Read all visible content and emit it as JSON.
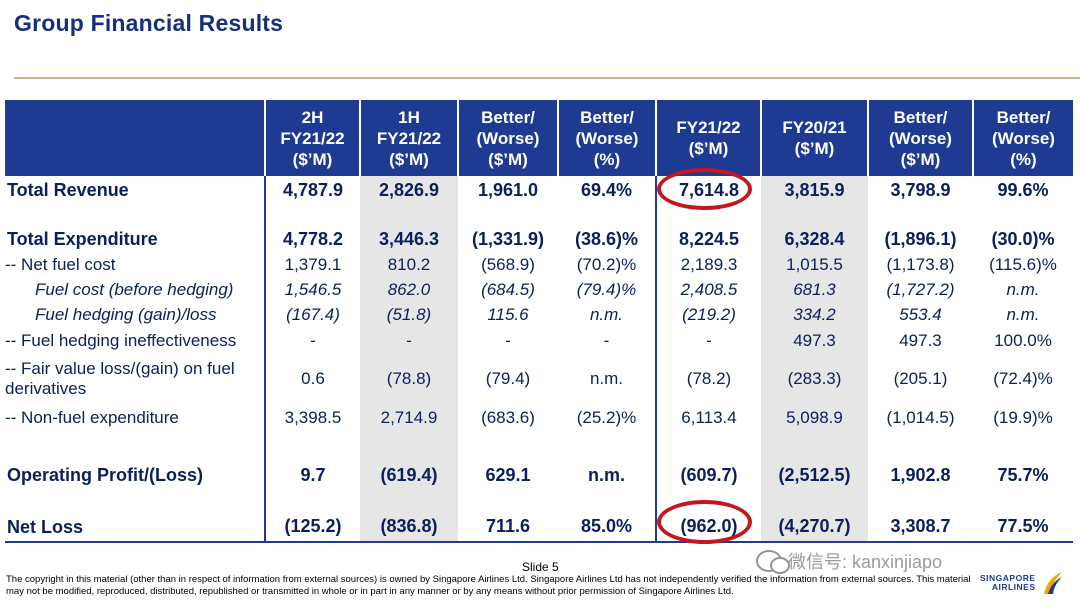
{
  "title": "Group Financial Results",
  "headers": {
    "label": "",
    "h2": [
      "2H",
      "FY21/22",
      "($’M)"
    ],
    "h1": [
      "1H",
      "FY21/22",
      "($’M)"
    ],
    "bw1": [
      "Better/",
      "(Worse)",
      "($’M)"
    ],
    "bw1p": [
      "Better/",
      "(Worse)",
      "(%)"
    ],
    "fy2122": [
      "FY21/22",
      "($’M)"
    ],
    "fy2021": [
      "FY20/21",
      "($’M)"
    ],
    "bw2": [
      "Better/",
      "(Worse)",
      "($’M)"
    ],
    "bw2p": [
      "Better/",
      "(Worse)",
      "(%)"
    ]
  },
  "rows": [
    {
      "label": "Total Revenue",
      "c": [
        "4,787.9",
        "2,826.9",
        "1,961.0",
        "69.4%",
        "7,614.8",
        "3,815.9",
        "3,798.9",
        "99.6%"
      ]
    },
    {
      "label": "Total Expenditure",
      "c": [
        "4,778.2",
        "3,446.3",
        "(1,331.9)",
        "(38.6)%",
        "8,224.5",
        "6,328.4",
        "(1,896.1)",
        "(30.0)%"
      ]
    },
    {
      "label": "-- Net fuel cost",
      "c": [
        "1,379.1",
        "810.2",
        "(568.9)",
        "(70.2)%",
        "2,189.3",
        "1,015.5",
        "(1,173.8)",
        "(115.6)%"
      ]
    },
    {
      "label": "Fuel cost (before hedging)",
      "c": [
        "1,546.5",
        "862.0",
        "(684.5)",
        "(79.4)%",
        "2,408.5",
        "681.3",
        "(1,727.2)",
        "n.m."
      ]
    },
    {
      "label": "Fuel hedging (gain)/loss",
      "c": [
        "(167.4)",
        "(51.8)",
        "115.6",
        "n.m.",
        "(219.2)",
        "334.2",
        "553.4",
        "n.m."
      ]
    },
    {
      "label": "-- Fuel hedging ineffectiveness",
      "c": [
        "-",
        "-",
        "-",
        "-",
        "-",
        "497.3",
        "497.3",
        "100.0%"
      ]
    },
    {
      "label": "-- Fair value loss/(gain) on fuel derivatives",
      "c": [
        "0.6",
        "(78.8)",
        "(79.4)",
        "n.m.",
        "(78.2)",
        "(283.3)",
        "(205.1)",
        "(72.4)%"
      ]
    },
    {
      "label": "-- Non-fuel expenditure",
      "c": [
        "3,398.5",
        "2,714.9",
        "(683.6)",
        "(25.2)%",
        "6,113.4",
        "5,098.9",
        "(1,014.5)",
        "(19.9)%"
      ]
    },
    {
      "label": "Operating Profit/(Loss)",
      "c": [
        "9.7",
        "(619.4)",
        "629.1",
        "n.m.",
        "(609.7)",
        "(2,512.5)",
        "1,902.8",
        "75.7%"
      ]
    },
    {
      "label": "Net Loss",
      "c": [
        "(125.2)",
        "(836.8)",
        "711.6",
        "85.0%",
        "(962.0)",
        "(4,270.7)",
        "3,308.7",
        "77.5%"
      ]
    }
  ],
  "highlight_color": "#c4161c",
  "negative_color": "#e0141c",
  "footer": {
    "slide": "Slide 5",
    "copyright": "The copyright in this material (other than in respect of information from external sources) is owned by Singapore Airlines Ltd. Singapore Airlines Ltd has not independently verified the information from external sources. This material may not be modified, reproduced, distributed, republished or transmitted in whole or in part in any manner or by any means without prior permission of Singapore Airlines Ltd.",
    "watermark": "微信号: kanxinjiapo",
    "logo_line1": "SINGAPORE",
    "logo_line2": "AIRLINES"
  }
}
